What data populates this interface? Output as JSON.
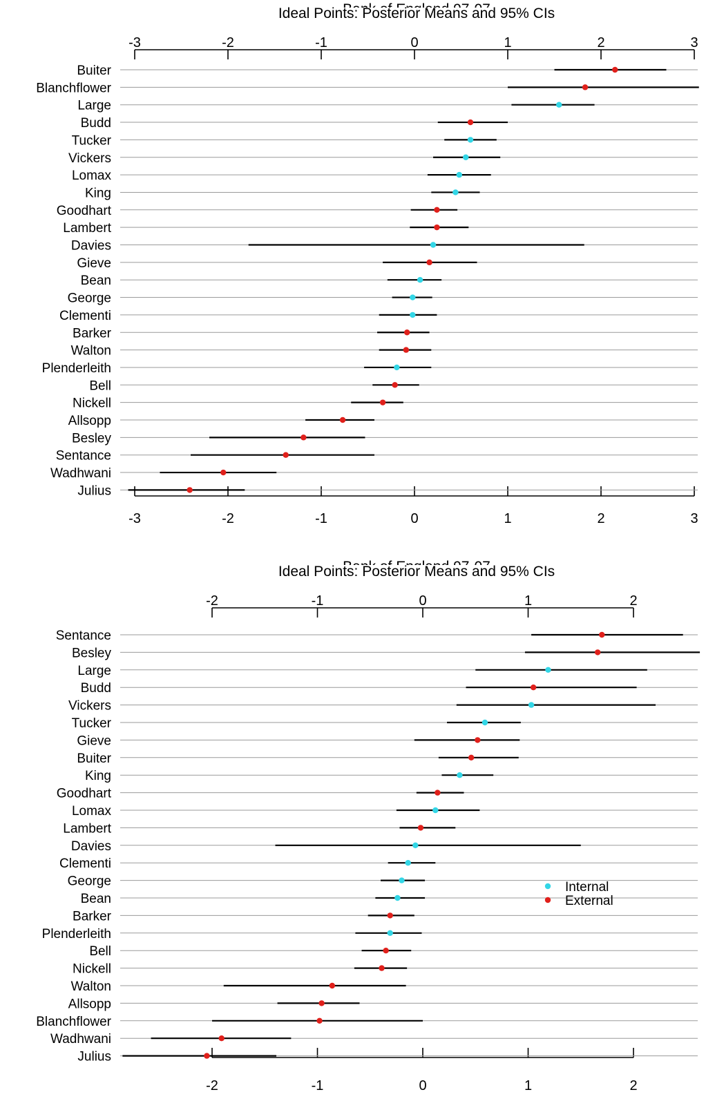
{
  "chart_data": [
    {
      "type": "scatter",
      "title_cut": "Bank of England 97-07",
      "title": "Ideal Points: Posterior Means and 95% CIs",
      "xlim": [
        -3,
        3
      ],
      "ticks": [
        "-3",
        "-2",
        "-1",
        "0",
        "1",
        "2",
        "3"
      ],
      "tick_values": [
        -3,
        -2,
        -1,
        0,
        1,
        2,
        3
      ],
      "grid": "horizontal lines per member",
      "series_colors": {
        "Internal": "#33d6e6",
        "External": "#e0201b"
      },
      "members": [
        {
          "name": "Buiter",
          "mean": 2.15,
          "lo": 1.5,
          "hi": 2.7,
          "group": "External"
        },
        {
          "name": "Blanchflower",
          "mean": 1.83,
          "lo": 1.0,
          "hi": 3.05,
          "group": "External"
        },
        {
          "name": "Large",
          "mean": 1.55,
          "lo": 1.04,
          "hi": 1.93,
          "group": "Internal"
        },
        {
          "name": "Budd",
          "mean": 0.6,
          "lo": 0.25,
          "hi": 1.0,
          "group": "External"
        },
        {
          "name": "Tucker",
          "mean": 0.6,
          "lo": 0.32,
          "hi": 0.88,
          "group": "Internal"
        },
        {
          "name": "Vickers",
          "mean": 0.55,
          "lo": 0.2,
          "hi": 0.92,
          "group": "Internal"
        },
        {
          "name": "Lomax",
          "mean": 0.48,
          "lo": 0.14,
          "hi": 0.82,
          "group": "Internal"
        },
        {
          "name": "King",
          "mean": 0.44,
          "lo": 0.18,
          "hi": 0.7,
          "group": "Internal"
        },
        {
          "name": "Goodhart",
          "mean": 0.24,
          "lo": -0.04,
          "hi": 0.46,
          "group": "External"
        },
        {
          "name": "Lambert",
          "mean": 0.24,
          "lo": -0.05,
          "hi": 0.58,
          "group": "External"
        },
        {
          "name": "Davies",
          "mean": 0.2,
          "lo": -1.78,
          "hi": 1.82,
          "group": "Internal"
        },
        {
          "name": "Gieve",
          "mean": 0.16,
          "lo": -0.34,
          "hi": 0.67,
          "group": "External"
        },
        {
          "name": "Bean",
          "mean": 0.06,
          "lo": -0.29,
          "hi": 0.29,
          "group": "Internal"
        },
        {
          "name": "George",
          "mean": -0.02,
          "lo": -0.24,
          "hi": 0.19,
          "group": "Internal"
        },
        {
          "name": "Clementi",
          "mean": -0.02,
          "lo": -0.38,
          "hi": 0.24,
          "group": "Internal"
        },
        {
          "name": "Barker",
          "mean": -0.08,
          "lo": -0.4,
          "hi": 0.16,
          "group": "External"
        },
        {
          "name": "Walton",
          "mean": -0.09,
          "lo": -0.38,
          "hi": 0.18,
          "group": "External"
        },
        {
          "name": "Plenderleith",
          "mean": -0.19,
          "lo": -0.54,
          "hi": 0.18,
          "group": "Internal"
        },
        {
          "name": "Bell",
          "mean": -0.21,
          "lo": -0.45,
          "hi": 0.05,
          "group": "External"
        },
        {
          "name": "Nickell",
          "mean": -0.34,
          "lo": -0.68,
          "hi": -0.12,
          "group": "External"
        },
        {
          "name": "Allsopp",
          "mean": -0.77,
          "lo": -1.17,
          "hi": -0.43,
          "group": "External"
        },
        {
          "name": "Besley",
          "mean": -1.19,
          "lo": -2.2,
          "hi": -0.53,
          "group": "External"
        },
        {
          "name": "Sentance",
          "mean": -1.38,
          "lo": -2.4,
          "hi": -0.43,
          "group": "External"
        },
        {
          "name": "Wadhwani",
          "mean": -2.05,
          "lo": -2.73,
          "hi": -1.48,
          "group": "External"
        },
        {
          "name": "Julius",
          "mean": -2.41,
          "lo": -3.07,
          "hi": -1.82,
          "group": "External"
        }
      ]
    },
    {
      "type": "scatter",
      "title_cut": "Bank of England 97-07",
      "title": "Ideal Points: Posterior Means and 95% CIs",
      "xlim": [
        -2.85,
        2.65
      ],
      "ticks": [
        "-2",
        "-1",
        "0",
        "1",
        "2"
      ],
      "tick_values": [
        -2,
        -1,
        0,
        1,
        2
      ],
      "grid": "horizontal lines per member",
      "legend": {
        "position": "right-middle",
        "entries": [
          "Internal",
          "External"
        ]
      },
      "series_colors": {
        "Internal": "#33d6e6",
        "External": "#e0201b"
      },
      "members": [
        {
          "name": "Sentance",
          "mean": 1.7,
          "lo": 1.03,
          "hi": 2.47,
          "group": "External"
        },
        {
          "name": "Besley",
          "mean": 1.66,
          "lo": 0.97,
          "hi": 2.63,
          "group": "External"
        },
        {
          "name": "Large",
          "mean": 1.19,
          "lo": 0.5,
          "hi": 2.13,
          "group": "Internal"
        },
        {
          "name": "Budd",
          "mean": 1.05,
          "lo": 0.41,
          "hi": 2.03,
          "group": "External"
        },
        {
          "name": "Vickers",
          "mean": 1.03,
          "lo": 0.32,
          "hi": 2.21,
          "group": "Internal"
        },
        {
          "name": "Tucker",
          "mean": 0.59,
          "lo": 0.23,
          "hi": 0.93,
          "group": "Internal"
        },
        {
          "name": "Gieve",
          "mean": 0.52,
          "lo": -0.08,
          "hi": 0.92,
          "group": "External"
        },
        {
          "name": "Buiter",
          "mean": 0.46,
          "lo": 0.15,
          "hi": 0.91,
          "group": "External"
        },
        {
          "name": "King",
          "mean": 0.35,
          "lo": 0.18,
          "hi": 0.67,
          "group": "Internal"
        },
        {
          "name": "Goodhart",
          "mean": 0.14,
          "lo": -0.06,
          "hi": 0.39,
          "group": "External"
        },
        {
          "name": "Lomax",
          "mean": 0.12,
          "lo": -0.25,
          "hi": 0.54,
          "group": "Internal"
        },
        {
          "name": "Lambert",
          "mean": -0.02,
          "lo": -0.22,
          "hi": 0.31,
          "group": "External"
        },
        {
          "name": "Davies",
          "mean": -0.07,
          "lo": -1.4,
          "hi": 1.5,
          "group": "Internal"
        },
        {
          "name": "Clementi",
          "mean": -0.14,
          "lo": -0.33,
          "hi": 0.12,
          "group": "Internal"
        },
        {
          "name": "George",
          "mean": -0.2,
          "lo": -0.4,
          "hi": 0.02,
          "group": "Internal"
        },
        {
          "name": "Bean",
          "mean": -0.24,
          "lo": -0.45,
          "hi": 0.02,
          "group": "Internal"
        },
        {
          "name": "Barker",
          "mean": -0.31,
          "lo": -0.52,
          "hi": -0.08,
          "group": "External"
        },
        {
          "name": "Plenderleith",
          "mean": -0.31,
          "lo": -0.64,
          "hi": -0.01,
          "group": "Internal"
        },
        {
          "name": "Bell",
          "mean": -0.35,
          "lo": -0.58,
          "hi": -0.11,
          "group": "External"
        },
        {
          "name": "Nickell",
          "mean": -0.39,
          "lo": -0.65,
          "hi": -0.15,
          "group": "External"
        },
        {
          "name": "Walton",
          "mean": -0.86,
          "lo": -1.89,
          "hi": -0.16,
          "group": "External"
        },
        {
          "name": "Allsopp",
          "mean": -0.96,
          "lo": -1.38,
          "hi": -0.6,
          "group": "External"
        },
        {
          "name": "Blanchflower",
          "mean": -0.98,
          "lo": -2.0,
          "hi": 0.0,
          "group": "External"
        },
        {
          "name": "Wadhwani",
          "mean": -1.91,
          "lo": -2.58,
          "hi": -1.25,
          "group": "External"
        },
        {
          "name": "Julius",
          "mean": -2.05,
          "lo": -2.85,
          "hi": -1.39,
          "group": "External"
        }
      ]
    }
  ]
}
